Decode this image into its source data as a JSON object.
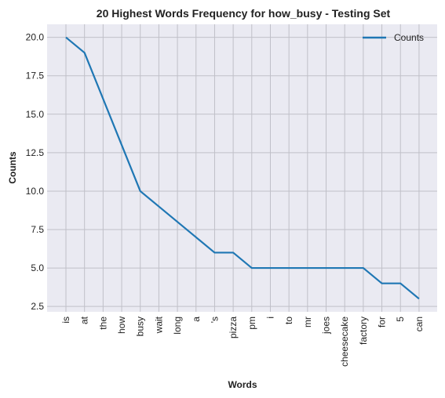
{
  "chart_data": {
    "type": "line",
    "title": "20 Highest Words Frequency for how_busy - Testing Set",
    "xlabel": "Words",
    "ylabel": "Counts",
    "categories": [
      "is",
      "at",
      "the",
      "how",
      "busy",
      "wait",
      "long",
      "a",
      "'s",
      "pizza",
      "pm",
      "i",
      "to",
      "mr",
      "joes",
      "cheesecake",
      "factory",
      "for",
      "5",
      "can"
    ],
    "series": [
      {
        "name": "Counts",
        "values": [
          20,
          19,
          16,
          13,
          10,
          9,
          8,
          7,
          6,
          6,
          5,
          5,
          5,
          5,
          5,
          5,
          5,
          4,
          4,
          3
        ]
      }
    ],
    "yticks": [
      "2.5",
      "5.0",
      "7.5",
      "10.0",
      "12.5",
      "15.0",
      "17.5",
      "20.0"
    ],
    "ylim": [
      2.15,
      20.85
    ],
    "grid": true,
    "legend_position": "top-right",
    "colors": {
      "line": "#1f77b4",
      "plot_bg": "#eaeaf2",
      "grid": "#c0c0c8"
    }
  }
}
